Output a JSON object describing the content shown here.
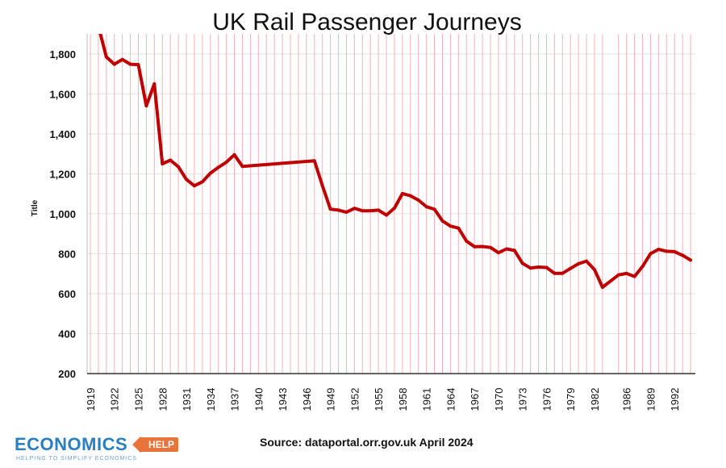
{
  "logo": {
    "main": "ECONOMICS",
    "badge": "HELP",
    "tagline": "HELPING TO SIMPLIFY ECONOMICS"
  },
  "source": "Source: dataportal.orr.gov.uk April 2024",
  "colors": {
    "line": "#c00000",
    "drop_lines": "#f4b3b3",
    "grid": "#e3e3e3"
  },
  "chart_data": {
    "type": "line",
    "title": "UK Rail Passenger Journeys",
    "xlabel": "",
    "ylabel": "Title",
    "ylim": [
      200,
      1900
    ],
    "yticks": [
      200,
      400,
      600,
      800,
      1000,
      1200,
      1400,
      1600,
      1800
    ],
    "ytick_labels": [
      "200",
      "400",
      "600",
      "800",
      "1,000",
      "1,200",
      "1,400",
      "1,600",
      "1,800"
    ],
    "xticks": [
      1919,
      1922,
      1925,
      1928,
      1931,
      1934,
      1937,
      1940,
      1943,
      1946,
      1949,
      1952,
      1955,
      1958,
      1961,
      1964,
      1967,
      1970,
      1973,
      1976,
      1979,
      1982,
      1986,
      1989,
      1992
    ],
    "x_categories": [
      1919,
      1920,
      1921,
      1922,
      1923,
      1924,
      1925,
      1926,
      1927,
      1928,
      1929,
      1930,
      1931,
      1932,
      1933,
      1934,
      1935,
      1936,
      1937,
      1938,
      1939,
      1940,
      1941,
      1942,
      1943,
      1944,
      1945,
      1946,
      1947,
      1948,
      1949,
      1950,
      1951,
      1952,
      1953,
      1954,
      1955,
      1956,
      1957,
      1958,
      1959,
      1960,
      1961,
      1962,
      1963,
      1964,
      1965,
      1966,
      1967,
      1968,
      1969,
      1970,
      1971,
      1972,
      1973,
      1974,
      1975,
      1976,
      1977,
      1978,
      1979,
      1980,
      1981,
      1982,
      1983,
      1985,
      1986,
      1987,
      1988,
      1989,
      1990,
      1991,
      1992,
      1993,
      1994
    ],
    "drop_lines": true,
    "grid": "horizontal",
    "series": [
      {
        "points": [
          [
            1920,
            1940
          ],
          [
            1921,
            1785
          ],
          [
            1922,
            1748
          ],
          [
            1923,
            1772
          ],
          [
            1924,
            1748
          ],
          [
            1925,
            1746
          ],
          [
            1926,
            1540
          ],
          [
            1927,
            1650
          ],
          [
            1928,
            1250
          ],
          [
            1929,
            1268
          ],
          [
            1930,
            1235
          ],
          [
            1931,
            1172
          ],
          [
            1932,
            1140
          ],
          [
            1933,
            1160
          ],
          [
            1934,
            1203
          ],
          [
            1935,
            1232
          ],
          [
            1936,
            1258
          ],
          [
            1937,
            1295
          ],
          [
            1938,
            1237
          ],
          [
            1947,
            1265
          ],
          [
            1948,
            1140
          ],
          [
            1949,
            1023
          ],
          [
            1950,
            1018
          ],
          [
            1951,
            1008
          ],
          [
            1952,
            1027
          ],
          [
            1953,
            1015
          ],
          [
            1954,
            1015
          ],
          [
            1955,
            1018
          ],
          [
            1956,
            993
          ],
          [
            1957,
            1028
          ],
          [
            1958,
            1101
          ],
          [
            1959,
            1090
          ],
          [
            1960,
            1068
          ],
          [
            1961,
            1035
          ],
          [
            1962,
            1022
          ],
          [
            1963,
            964
          ],
          [
            1964,
            938
          ],
          [
            1965,
            928
          ],
          [
            1966,
            863
          ],
          [
            1967,
            835
          ],
          [
            1968,
            836
          ],
          [
            1969,
            831
          ],
          [
            1970,
            805
          ],
          [
            1971,
            824
          ],
          [
            1972,
            816
          ],
          [
            1973,
            752
          ],
          [
            1974,
            728
          ],
          [
            1975,
            733
          ],
          [
            1976,
            731
          ],
          [
            1977,
            702
          ],
          [
            1978,
            702
          ],
          [
            1979,
            726
          ],
          [
            1980,
            750
          ],
          [
            1981,
            763
          ],
          [
            1982,
            720
          ],
          [
            1983,
            632
          ],
          [
            1985,
            694
          ],
          [
            1986,
            701
          ],
          [
            1987,
            686
          ],
          [
            1988,
            736
          ],
          [
            1989,
            800
          ],
          [
            1990,
            822
          ],
          [
            1991,
            812
          ],
          [
            1992,
            810
          ],
          [
            1993,
            792
          ],
          [
            1994,
            768
          ]
        ]
      }
    ]
  }
}
